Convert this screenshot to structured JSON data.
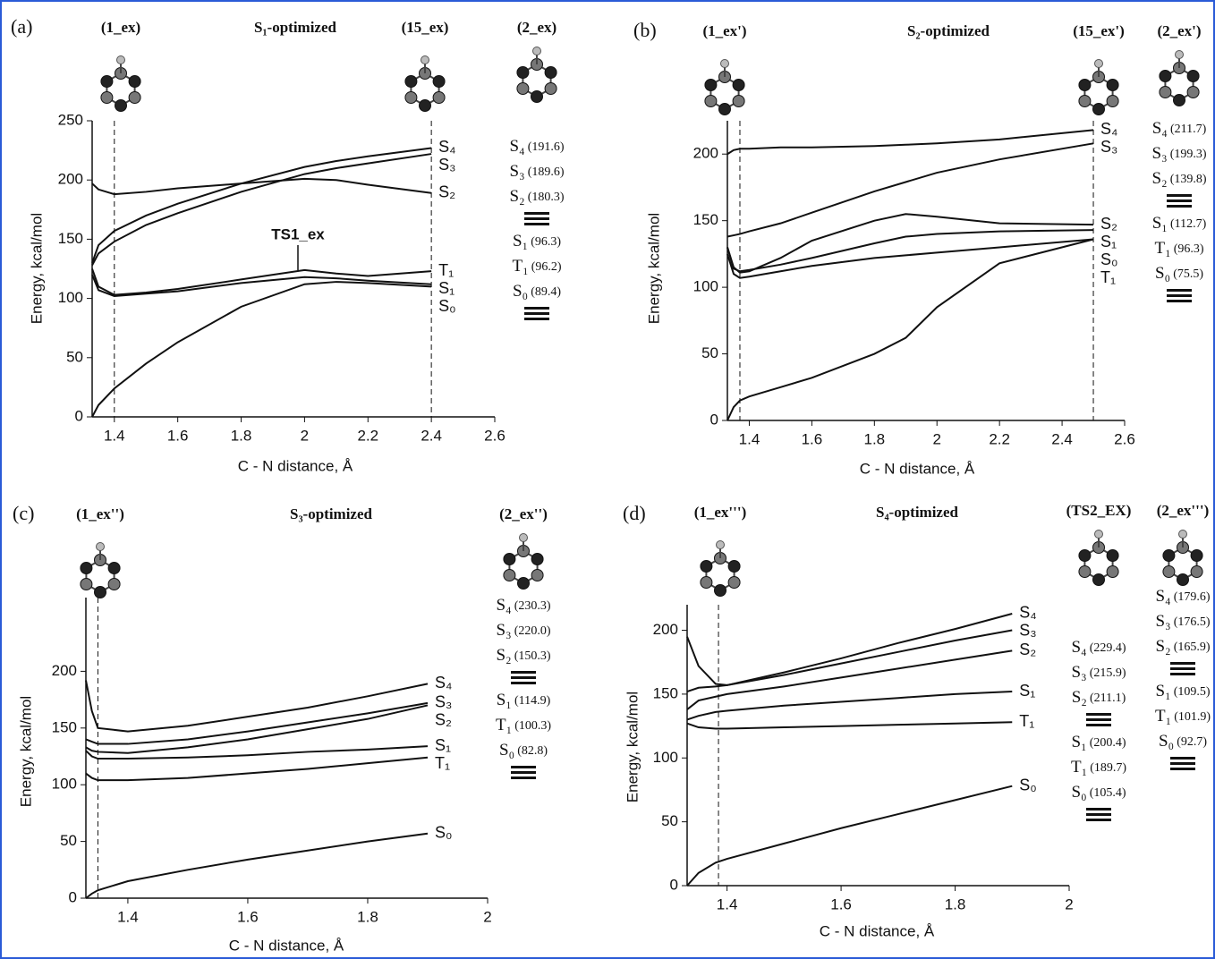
{
  "chart_data": [
    {
      "type": "line",
      "panel": "(a)",
      "title": "S₁-optimized",
      "structures": [
        "(1_ex)",
        "(15_ex)"
      ],
      "xlabel": "C - N distance, Å",
      "ylabel": "Energy, kcal/mol",
      "x": [
        1.33,
        1.35,
        1.4,
        1.5,
        1.6,
        1.8,
        2.0,
        2.1,
        2.2,
        2.4
      ],
      "series": [
        {
          "name": "S₄",
          "color": "#111111",
          "values": [
            130,
            145,
            157,
            170,
            180,
            197,
            211,
            216,
            220,
            227
          ]
        },
        {
          "name": "S₃",
          "color": "#111111",
          "values": [
            128,
            138,
            148,
            162,
            172,
            190,
            205,
            210,
            214,
            222
          ]
        },
        {
          "name": "S₂",
          "color": "#111111",
          "values": [
            197,
            192,
            188,
            190,
            193,
            197,
            201,
            200,
            196,
            189
          ]
        },
        {
          "name": "S₁",
          "color": "#111111",
          "values": [
            120,
            107,
            102,
            104,
            106,
            113,
            118,
            117,
            115,
            112
          ]
        },
        {
          "name": "T₁",
          "color": "#111111",
          "values": [
            125,
            110,
            103,
            105,
            108,
            116,
            124,
            121,
            119,
            123
          ]
        },
        {
          "name": "S₀",
          "color": "#111111",
          "values": [
            0,
            10,
            24,
            45,
            63,
            93,
            112,
            114,
            113,
            110
          ]
        }
      ],
      "annotations": [
        "TS1_ex"
      ],
      "vlines": [
        1.4,
        2.4
      ],
      "xlim": [
        1.33,
        2.6
      ],
      "xticks": [
        1.4,
        1.6,
        1.8,
        2.0,
        2.2,
        2.4,
        2.6
      ],
      "ylim": [
        0,
        250
      ],
      "yticks": [
        0,
        50,
        100,
        150,
        200,
        250
      ],
      "levels": [
        {
          "name": "(2_ex)",
          "states": [
            "S₄",
            "S₃",
            "S₂",
            "S₁",
            "T₁",
            "S₀"
          ],
          "values": [
            191.6,
            189.6,
            180.3,
            96.3,
            96.2,
            89.4
          ],
          "value_labels": [
            "(191.6)",
            "(189.6)",
            "(180.3)",
            "(96.3)",
            "(96.2)",
            "(89.4)"
          ]
        }
      ]
    },
    {
      "type": "line",
      "panel": "(b)",
      "title": "S₂-optimized",
      "structures": [
        "(1_ex')",
        "(15_ex')"
      ],
      "xlabel": "C - N distance, Å",
      "ylabel": "Energy, kcal/mol",
      "x": [
        1.33,
        1.35,
        1.37,
        1.4,
        1.5,
        1.6,
        1.8,
        1.9,
        2.0,
        2.2,
        2.5
      ],
      "series": [
        {
          "name": "S₄",
          "color": "#111111",
          "values": [
            200,
            203,
            204,
            204,
            205,
            205,
            206,
            207,
            208,
            211,
            218
          ]
        },
        {
          "name": "S₃",
          "color": "#111111",
          "values": [
            138,
            139,
            140,
            142,
            148,
            156,
            172,
            179,
            186,
            196,
            208
          ]
        },
        {
          "name": "S₂",
          "color": "#111111",
          "values": [
            130,
            115,
            111,
            112,
            122,
            135,
            150,
            155,
            153,
            148,
            147
          ]
        },
        {
          "name": "S₁",
          "color": "#111111",
          "values": [
            130,
            114,
            112,
            113,
            117,
            122,
            133,
            138,
            140,
            142,
            143
          ]
        },
        {
          "name": "S₀",
          "color": "#111111",
          "values": [
            125,
            110,
            107,
            108,
            112,
            116,
            122,
            124,
            126,
            130,
            136
          ]
        },
        {
          "name": "T₁",
          "color": "#111111",
          "values": [
            0,
            10,
            15,
            18,
            25,
            32,
            50,
            62,
            85,
            118,
            136
          ]
        }
      ],
      "vlines": [
        1.37,
        2.5
      ],
      "xlim": [
        1.33,
        2.6
      ],
      "xticks": [
        1.4,
        1.6,
        1.8,
        2.0,
        2.2,
        2.4,
        2.6
      ],
      "ylim": [
        0,
        225
      ],
      "yticks": [
        0,
        50,
        100,
        150,
        200
      ],
      "levels": [
        {
          "name": "(2_ex')",
          "states": [
            "S₄",
            "S₃",
            "S₂",
            "S₁",
            "T₁",
            "S₀"
          ],
          "values": [
            211.7,
            199.3,
            139.8,
            112.7,
            96.3,
            75.5
          ],
          "value_labels": [
            "(211.7)",
            "(199.3)",
            "(139.8)",
            "(112.7)",
            "(96.3)",
            "(75.5)"
          ]
        }
      ]
    },
    {
      "type": "line",
      "panel": "(c)",
      "title": "S₃-optimized",
      "structures": [
        "(1_ex'')"
      ],
      "xlabel": "C - N distance, Å",
      "ylabel": "Energy, kcal/mol",
      "x": [
        1.33,
        1.34,
        1.35,
        1.4,
        1.5,
        1.6,
        1.7,
        1.8,
        1.9
      ],
      "series": [
        {
          "name": "S₄",
          "color": "#111111",
          "values": [
            192,
            165,
            150,
            147,
            152,
            160,
            168,
            178,
            189
          ]
        },
        {
          "name": "S₃",
          "color": "#111111",
          "values": [
            140,
            138,
            136,
            136,
            140,
            147,
            155,
            163,
            172
          ]
        },
        {
          "name": "S₂",
          "color": "#111111",
          "values": [
            133,
            130,
            129,
            128,
            133,
            140,
            149,
            158,
            170
          ]
        },
        {
          "name": "S₁",
          "color": "#111111",
          "values": [
            130,
            125,
            123,
            123,
            124,
            126,
            129,
            131,
            134
          ]
        },
        {
          "name": "T₁",
          "color": "#111111",
          "values": [
            110,
            106,
            104,
            104,
            106,
            110,
            114,
            119,
            124
          ]
        },
        {
          "name": "S₀",
          "color": "#111111",
          "values": [
            0,
            4,
            7,
            15,
            25,
            34,
            42,
            50,
            57
          ]
        }
      ],
      "vlines": [
        1.35
      ],
      "xlim": [
        1.33,
        2.0
      ],
      "xticks": [
        1.4,
        1.6,
        1.8,
        2.0
      ],
      "ylim": [
        0,
        265
      ],
      "yticks": [
        0,
        50,
        100,
        150,
        200
      ],
      "levels": [
        {
          "name": "(2_ex'')",
          "states": [
            "S₄",
            "S₃",
            "S₂",
            "S₁",
            "T₁",
            "S₀"
          ],
          "values": [
            230.3,
            220.0,
            150.3,
            114.9,
            100.3,
            82.8
          ],
          "value_labels": [
            "(230.3)",
            "(220.0)",
            "(150.3)",
            "(114.9)",
            "(100.3)",
            "(82.8)"
          ]
        }
      ]
    },
    {
      "type": "line",
      "panel": "(d)",
      "title": "S₄-optimized",
      "structures": [
        "(1_ex''')"
      ],
      "xlabel": "C - N distance, Å",
      "ylabel": "Energy, kcal/mol",
      "x": [
        1.33,
        1.35,
        1.38,
        1.4,
        1.5,
        1.6,
        1.7,
        1.8,
        1.9
      ],
      "series": [
        {
          "name": "S₄",
          "color": "#111111",
          "values": [
            195,
            172,
            158,
            157,
            167,
            178,
            190,
            201,
            213
          ]
        },
        {
          "name": "S₃",
          "color": "#111111",
          "values": [
            152,
            155,
            156,
            157,
            165,
            174,
            183,
            192,
            200
          ]
        },
        {
          "name": "S₂",
          "color": "#111111",
          "values": [
            138,
            145,
            148,
            150,
            156,
            163,
            170,
            177,
            184
          ]
        },
        {
          "name": "S₁",
          "color": "#111111",
          "values": [
            130,
            133,
            136,
            137,
            141,
            144,
            147,
            150,
            152
          ]
        },
        {
          "name": "T₁",
          "color": "#111111",
          "values": [
            127,
            124,
            123,
            123,
            124,
            125,
            126,
            127,
            128
          ]
        },
        {
          "name": "S₀",
          "color": "#111111",
          "values": [
            0,
            10,
            18,
            21,
            33,
            45,
            56,
            67,
            78
          ]
        }
      ],
      "vlines": [
        1.385
      ],
      "xlim": [
        1.33,
        2.0
      ],
      "xticks": [
        1.4,
        1.6,
        1.8,
        2.0
      ],
      "ylim": [
        0,
        220
      ],
      "yticks": [
        0,
        50,
        100,
        150,
        200
      ],
      "levels": [
        {
          "name": "(TS2_EX)",
          "states": [
            "S₄",
            "S₃",
            "S₂",
            "S₁",
            "T₁",
            "S₀"
          ],
          "values": [
            229.4,
            215.9,
            211.1,
            200.4,
            189.7,
            105.4
          ],
          "value_labels": [
            "(229.4)",
            "(215.9)",
            "(211.1)",
            "(200.4)",
            "(189.7)",
            "(105.4)"
          ]
        },
        {
          "name": "(2_ex''')",
          "states": [
            "S₄",
            "S₃",
            "S₂",
            "S₁",
            "T₁",
            "S₀"
          ],
          "values": [
            179.6,
            176.5,
            165.9,
            109.5,
            101.9,
            92.7
          ],
          "value_labels": [
            "(179.6)",
            "(176.5)",
            "(165.9)",
            "(109.5)",
            "(101.9)",
            "(92.7)"
          ]
        }
      ]
    }
  ]
}
